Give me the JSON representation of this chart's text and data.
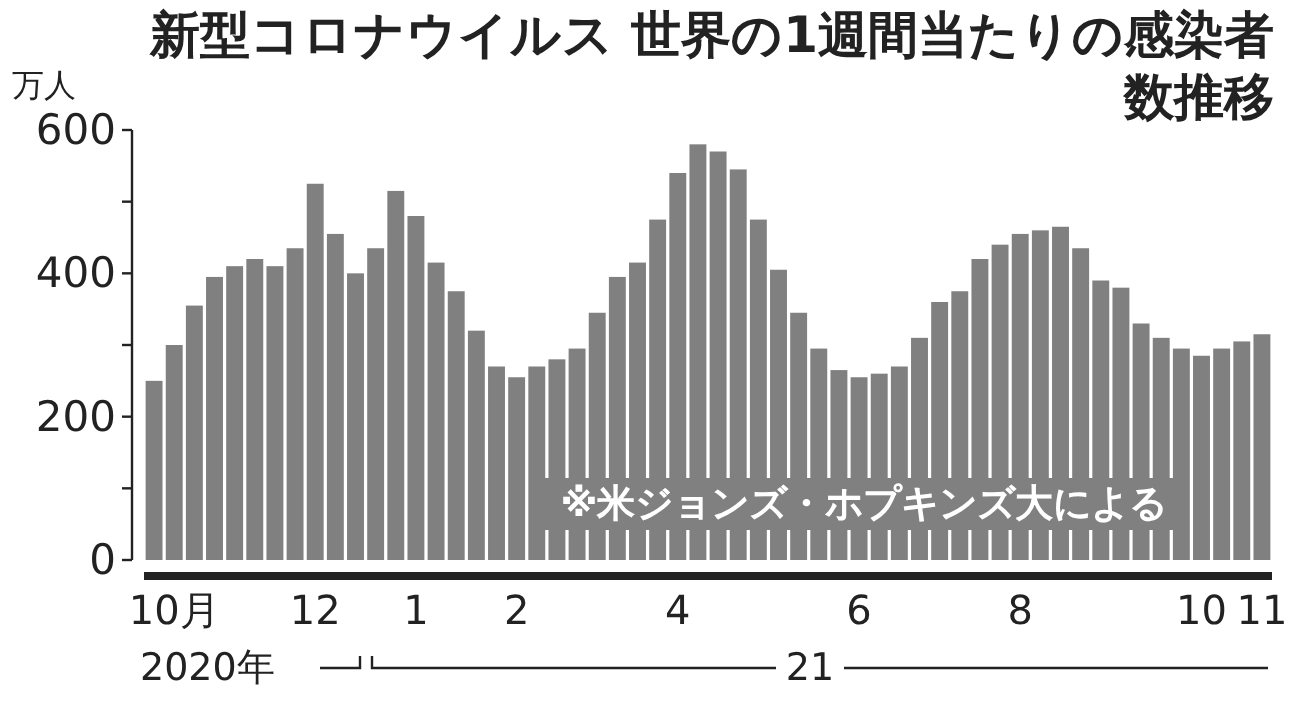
{
  "chart_data": {
    "type": "bar",
    "title": "新型コロナウイルス 世界の1週間当たりの感染者数推移",
    "ylabel": "万人",
    "color": "#808080",
    "categories": [
      null,
      "10月",
      null,
      null,
      null,
      null,
      null,
      null,
      "12",
      null,
      null,
      null,
      null,
      "1",
      null,
      null,
      null,
      null,
      "2",
      null,
      null,
      null,
      null,
      null,
      null,
      null,
      "4",
      null,
      null,
      null,
      null,
      null,
      null,
      null,
      null,
      "6",
      null,
      null,
      null,
      null,
      null,
      null,
      null,
      "8",
      null,
      null,
      null,
      null,
      null,
      null,
      null,
      null,
      "10",
      null,
      null,
      "11"
    ],
    "values": [
      250,
      300,
      355,
      395,
      410,
      420,
      410,
      435,
      525,
      455,
      400,
      435,
      515,
      480,
      415,
      375,
      320,
      270,
      255,
      270,
      280,
      295,
      345,
      395,
      415,
      475,
      540,
      580,
      570,
      545,
      475,
      405,
      345,
      295,
      265,
      255,
      260,
      270,
      310,
      360,
      375,
      420,
      440,
      455,
      460,
      465,
      435,
      390,
      380,
      330,
      310,
      295,
      285,
      295,
      305,
      315
    ],
    "ylim": [
      0,
      600
    ],
    "yticks": [
      0,
      {
        "value": 100,
        "label": null
      },
      200,
      {
        "value": 300,
        "label": null
      },
      400,
      {
        "value": 500,
        "label": null
      },
      600
    ],
    "annotations": [
      "※米ジョンズ・ホプキンズ大による",
      "2020年",
      "21"
    ]
  }
}
